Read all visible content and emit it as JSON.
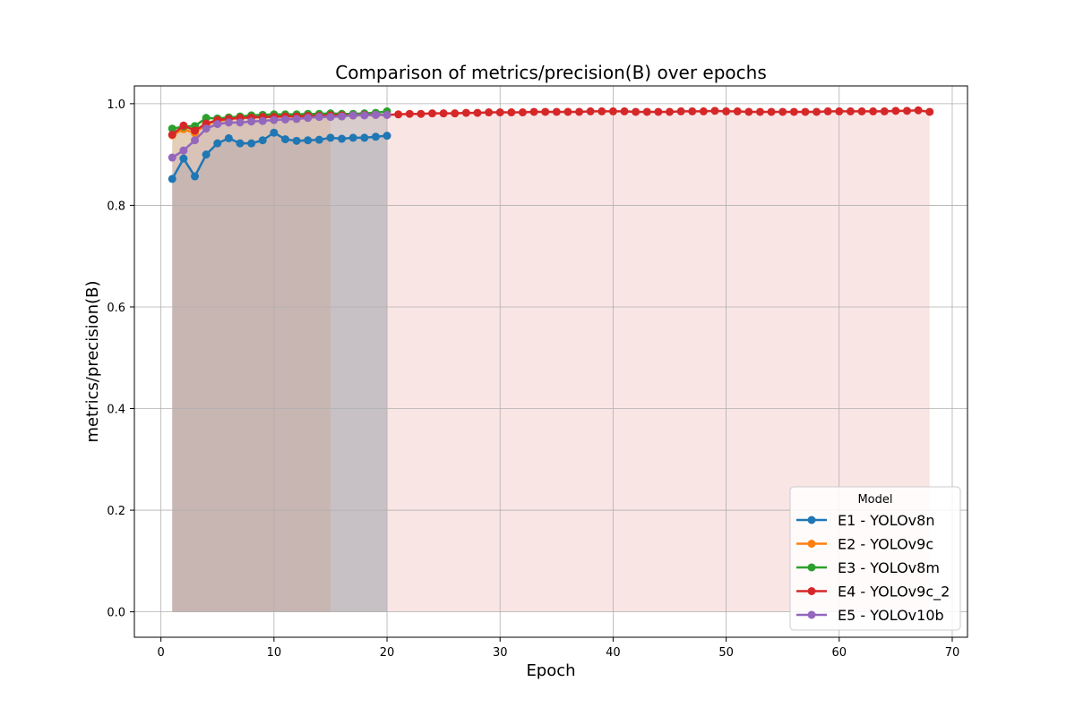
{
  "chart_data": {
    "type": "line",
    "title": "Comparison of metrics/precision(B) over epochs",
    "xlabel": "Epoch",
    "ylabel": "metrics/precision(B)",
    "xlim": [
      -2.35,
      71.35
    ],
    "ylim": [
      -0.05,
      1.035
    ],
    "xticks": [
      0,
      10,
      20,
      30,
      40,
      50,
      60,
      70
    ],
    "yticks": [
      0.0,
      0.2,
      0.4,
      0.6,
      0.8,
      1.0
    ],
    "grid": true,
    "legend": {
      "title": "Model",
      "position": "bottom-right"
    },
    "fill_under_lines": true,
    "series": [
      {
        "name": "E1 - YOLOv8n",
        "color": "#1f77b4",
        "x": [
          1,
          2,
          3,
          4,
          5,
          6,
          7,
          8,
          9,
          10,
          11,
          12,
          13,
          14,
          15,
          16,
          17,
          18,
          19,
          20
        ],
        "values": [
          0.852,
          0.892,
          0.857,
          0.9,
          0.922,
          0.932,
          0.922,
          0.922,
          0.928,
          0.943,
          0.93,
          0.927,
          0.928,
          0.929,
          0.933,
          0.931,
          0.933,
          0.933,
          0.935,
          0.937
        ]
      },
      {
        "name": "E2 - YOLOv9c",
        "color": "#ff7f0e",
        "x": [
          1,
          2,
          3,
          4,
          5,
          6,
          7,
          8,
          9,
          10,
          11,
          12,
          13,
          14,
          15
        ],
        "values": [
          0.938,
          0.95,
          0.942,
          0.96,
          0.965,
          0.97,
          0.972,
          0.973,
          0.974,
          0.976,
          0.977,
          0.977,
          0.978,
          0.978,
          0.979
        ]
      },
      {
        "name": "E3 - YOLOv8m",
        "color": "#2ca02c",
        "x": [
          1,
          2,
          3,
          4,
          5,
          6,
          7,
          8,
          9,
          10,
          11,
          12,
          13,
          14,
          15,
          16,
          17,
          18,
          19,
          20
        ],
        "values": [
          0.951,
          0.955,
          0.956,
          0.972,
          0.971,
          0.973,
          0.975,
          0.977,
          0.978,
          0.979,
          0.979,
          0.979,
          0.98,
          0.98,
          0.981,
          0.98,
          0.98,
          0.981,
          0.982,
          0.985
        ]
      },
      {
        "name": "E4 - YOLOv9c_2",
        "color": "#d62728",
        "x": [
          1,
          2,
          3,
          4,
          5,
          6,
          7,
          8,
          9,
          10,
          11,
          12,
          13,
          14,
          15,
          16,
          17,
          18,
          19,
          20,
          21,
          22,
          23,
          24,
          25,
          26,
          27,
          28,
          29,
          30,
          31,
          32,
          33,
          34,
          35,
          36,
          37,
          38,
          39,
          40,
          41,
          42,
          43,
          44,
          45,
          46,
          47,
          48,
          49,
          50,
          51,
          52,
          53,
          54,
          55,
          56,
          57,
          58,
          59,
          60,
          61,
          62,
          63,
          64,
          65,
          66,
          67,
          68
        ],
        "values": [
          0.939,
          0.957,
          0.947,
          0.961,
          0.968,
          0.97,
          0.972,
          0.973,
          0.974,
          0.974,
          0.975,
          0.975,
          0.976,
          0.976,
          0.977,
          0.977,
          0.977,
          0.978,
          0.978,
          0.978,
          0.979,
          0.98,
          0.98,
          0.981,
          0.981,
          0.981,
          0.982,
          0.982,
          0.983,
          0.983,
          0.983,
          0.983,
          0.984,
          0.984,
          0.984,
          0.984,
          0.984,
          0.985,
          0.985,
          0.985,
          0.985,
          0.984,
          0.984,
          0.984,
          0.984,
          0.985,
          0.985,
          0.985,
          0.986,
          0.985,
          0.985,
          0.984,
          0.984,
          0.984,
          0.984,
          0.984,
          0.984,
          0.984,
          0.985,
          0.985,
          0.985,
          0.985,
          0.985,
          0.985,
          0.986,
          0.986,
          0.987,
          0.984
        ]
      },
      {
        "name": "E5 - YOLOv10b",
        "color": "#9467bd",
        "x": [
          1,
          2,
          3,
          4,
          5,
          6,
          7,
          8,
          9,
          10,
          11,
          12,
          13,
          14,
          15,
          16,
          17,
          18,
          19,
          20
        ],
        "values": [
          0.894,
          0.908,
          0.928,
          0.951,
          0.96,
          0.963,
          0.963,
          0.965,
          0.966,
          0.968,
          0.969,
          0.97,
          0.972,
          0.974,
          0.974,
          0.975,
          0.977,
          0.977,
          0.978,
          0.978
        ]
      }
    ]
  }
}
